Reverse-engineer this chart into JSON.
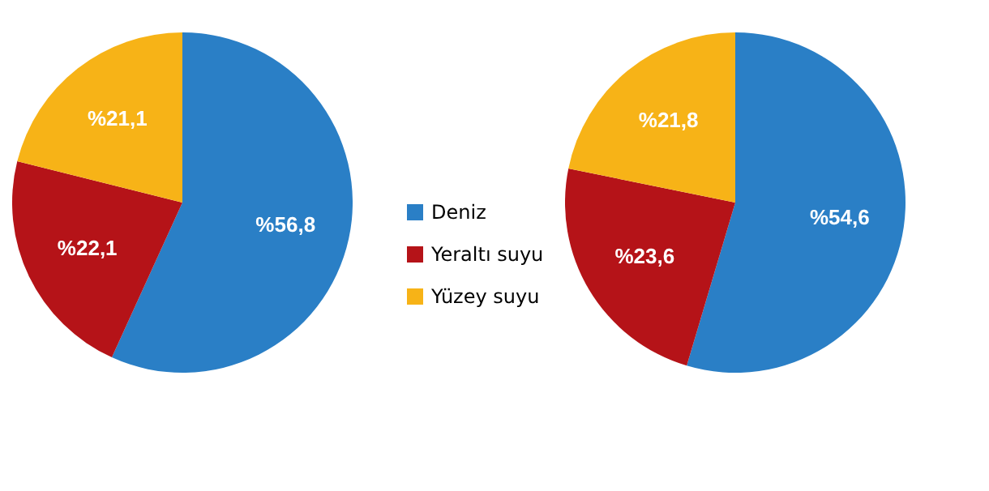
{
  "chart_data": [
    {
      "type": "pie",
      "categories": [
        "Deniz",
        "Yeraltı suyu",
        "Yüzey suyu"
      ],
      "values": [
        56.8,
        22.1,
        21.1
      ],
      "colors": [
        "#2a7fc6",
        "#b51318",
        "#f7b317"
      ],
      "value_labels": [
        "%56,8",
        "%22,1",
        "%21,1"
      ],
      "legend": "right"
    },
    {
      "type": "pie",
      "categories": [
        null,
        null,
        null
      ],
      "values": [
        54.6,
        23.6,
        21.8
      ],
      "colors": [
        "#2a7fc6",
        "#b51318",
        "#f7b317"
      ],
      "value_labels": [
        "%54,6",
        "%23,6",
        "%21,8"
      ]
    }
  ]
}
